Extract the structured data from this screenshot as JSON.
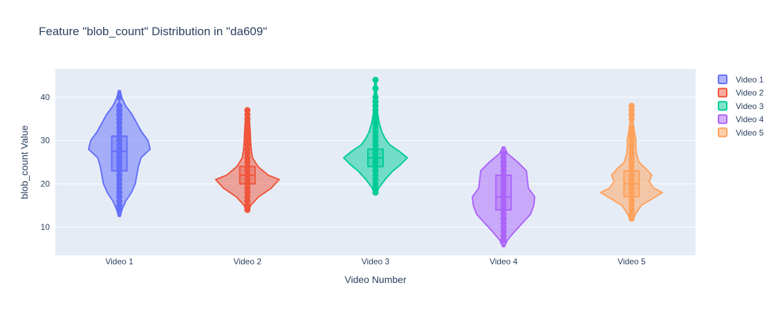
{
  "chart_data": {
    "type": "violin",
    "title": "Feature \"blob_count\" Distribution in \"da609\"",
    "xlabel": "Video Number",
    "ylabel": "blob_count Value",
    "ylim": [
      3.5,
      46.5
    ],
    "yticks": [
      10,
      20,
      30,
      40
    ],
    "categories": [
      "Video 1",
      "Video 2",
      "Video 3",
      "Video 4",
      "Video 5"
    ],
    "grid": true,
    "legend": "right",
    "series": [
      {
        "name": "Video 1",
        "color": "#636efa",
        "min": 12.5,
        "max": 41.5,
        "q1": 23,
        "median": 27.5,
        "q3": 31,
        "points": [
          14,
          15,
          16,
          17,
          18,
          19,
          20,
          21,
          22,
          23,
          24,
          25,
          26,
          27,
          28,
          29,
          30,
          31,
          32,
          33,
          34,
          35,
          36,
          37,
          38,
          40
        ],
        "profile": [
          [
            12.5,
            0.03
          ],
          [
            14,
            0.08
          ],
          [
            16,
            0.2
          ],
          [
            18,
            0.38
          ],
          [
            20,
            0.5
          ],
          [
            22,
            0.55
          ],
          [
            24,
            0.6
          ],
          [
            26,
            0.68
          ],
          [
            28,
            0.97
          ],
          [
            30,
            0.9
          ],
          [
            32,
            0.7
          ],
          [
            34,
            0.55
          ],
          [
            36,
            0.4
          ],
          [
            38,
            0.2
          ],
          [
            40,
            0.07
          ],
          [
            41.5,
            0.03
          ]
        ]
      },
      {
        "name": "Video 2",
        "color": "#ef553b",
        "min": 13.5,
        "max": 37.5,
        "q1": 20,
        "median": 22,
        "q3": 24,
        "points": [
          14,
          15,
          16,
          17,
          18,
          19,
          20,
          21,
          22,
          23,
          24,
          25,
          26,
          27,
          28,
          29,
          30,
          31,
          32,
          33,
          34,
          35,
          36,
          37
        ],
        "profile": [
          [
            13.5,
            0.03
          ],
          [
            15,
            0.1
          ],
          [
            17,
            0.35
          ],
          [
            19,
            0.75
          ],
          [
            21,
            1.0
          ],
          [
            22,
            0.65
          ],
          [
            24,
            0.33
          ],
          [
            26,
            0.16
          ],
          [
            28,
            0.12
          ],
          [
            30,
            0.1
          ],
          [
            32,
            0.09
          ],
          [
            34,
            0.07
          ],
          [
            36,
            0.05
          ],
          [
            37.5,
            0.03
          ]
        ]
      },
      {
        "name": "Video 3",
        "color": "#00cc96",
        "min": 17.5,
        "max": 44.5,
        "q1": 24,
        "median": 26,
        "q3": 28,
        "points": [
          18,
          19,
          20,
          21,
          22,
          23,
          24,
          25,
          26,
          27,
          28,
          29,
          30,
          31,
          32,
          33,
          34,
          35,
          36,
          37,
          38,
          39,
          40,
          42,
          44
        ],
        "profile": [
          [
            17.5,
            0.03
          ],
          [
            19,
            0.1
          ],
          [
            21,
            0.3
          ],
          [
            23,
            0.55
          ],
          [
            24.5,
            0.8
          ],
          [
            26,
            1.0
          ],
          [
            27.5,
            0.75
          ],
          [
            29,
            0.45
          ],
          [
            30.5,
            0.3
          ],
          [
            32,
            0.2
          ],
          [
            34,
            0.12
          ],
          [
            36,
            0.07
          ],
          [
            38,
            0.05
          ],
          [
            40,
            0.04
          ],
          [
            42,
            0.03
          ],
          [
            44.5,
            0.02
          ]
        ]
      },
      {
        "name": "Video 4",
        "color": "#ab63fa",
        "min": 5.5,
        "max": 28.5,
        "q1": 14,
        "median": 17,
        "q3": 22,
        "points": [
          7,
          8,
          9,
          10,
          11,
          12,
          13,
          14,
          15,
          16,
          17,
          18,
          19,
          20,
          21,
          22,
          23,
          24,
          25,
          26,
          27
        ],
        "profile": [
          [
            5.5,
            0.03
          ],
          [
            7,
            0.12
          ],
          [
            9,
            0.35
          ],
          [
            11,
            0.6
          ],
          [
            13,
            0.85
          ],
          [
            15,
            0.95
          ],
          [
            17,
            0.98
          ],
          [
            19,
            0.78
          ],
          [
            21,
            0.75
          ],
          [
            23,
            0.72
          ],
          [
            25,
            0.45
          ],
          [
            27,
            0.12
          ],
          [
            28.5,
            0.03
          ]
        ]
      },
      {
        "name": "Video 5",
        "color": "#ffa15a",
        "min": 11.5,
        "max": 38.5,
        "q1": 17,
        "median": 20,
        "q3": 23,
        "points": [
          12,
          13,
          14,
          15,
          16,
          17,
          18,
          19,
          20,
          21,
          22,
          23,
          24,
          25,
          26,
          27,
          28,
          29,
          30,
          31,
          32,
          33,
          35,
          36,
          37,
          38
        ],
        "profile": [
          [
            11.5,
            0.03
          ],
          [
            13,
            0.12
          ],
          [
            15,
            0.3
          ],
          [
            17,
            0.75
          ],
          [
            18,
            0.97
          ],
          [
            19,
            0.7
          ],
          [
            20.5,
            0.55
          ],
          [
            22,
            0.63
          ],
          [
            23.5,
            0.45
          ],
          [
            25,
            0.23
          ],
          [
            27,
            0.15
          ],
          [
            29,
            0.13
          ],
          [
            30,
            0.14
          ],
          [
            32,
            0.09
          ],
          [
            34,
            0.05
          ],
          [
            36,
            0.04
          ],
          [
            38.5,
            0.02
          ]
        ]
      }
    ]
  }
}
